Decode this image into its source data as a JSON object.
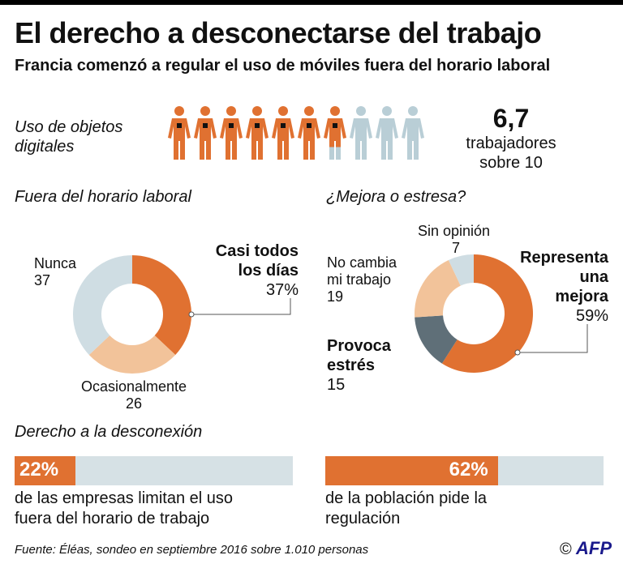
{
  "header": {
    "title": "El derecho a desconectarse del trabajo",
    "subtitle": "Francia comenzó a regular el uso de móviles fuera del horario laboral"
  },
  "usage": {
    "label_line1": "Uso de objetos",
    "label_line2": "digitales",
    "value": "6,7",
    "caption_line1": "trabajadores",
    "caption_line2": "sobre 10",
    "ratio": 0.67,
    "icon_count": 10
  },
  "colors": {
    "orange": "#e07131",
    "peach": "#f2c39a",
    "lightblue": "#cfdde3",
    "slate": "#5f6f78",
    "paleblue": "#d6e1e5",
    "figure_blue": "#b9ced6"
  },
  "fuera": {
    "section_title": "Fuera del horario laboral"
  },
  "mejora": {
    "section_title": "¿Mejora o estresa?"
  },
  "chart_data": [
    {
      "type": "pie",
      "title": "Fuera del horario laboral",
      "slices": [
        {
          "label_line1": "Casi todos",
          "label_line2": "los días",
          "value_text": "37%",
          "value": 37
        },
        {
          "label_line1": "Ocasionalmente",
          "value_text": "26",
          "value": 26
        },
        {
          "label_line1": "Nunca",
          "value_text": "37",
          "value": 37
        }
      ]
    },
    {
      "type": "pie",
      "title": "¿Mejora o estresa?",
      "slices": [
        {
          "label_line1": "Representa",
          "label_line2": "una",
          "label_line3": "mejora",
          "value_text": "59%",
          "value": 59
        },
        {
          "label_line1": "Provoca",
          "label_line2": "estrés",
          "value_text": "15",
          "value": 15
        },
        {
          "label_line1": "No cambia",
          "label_line2": "mi trabajo",
          "value_text": "19",
          "value": 19
        },
        {
          "label_line1": "Sin opinión",
          "value_text": "7",
          "value": 7
        }
      ]
    },
    {
      "type": "bar",
      "title": "Derecho a la desconexión",
      "bars": [
        {
          "value": 22,
          "value_text": "22%",
          "text_line1": "de las empresas limitan el uso",
          "text_line2": "fuera del horario de trabajo"
        },
        {
          "value": 62,
          "value_text": "62%",
          "text_line1": "de la población pide la",
          "text_line2": "regulación"
        }
      ]
    }
  ],
  "derecho": {
    "section_title": "Derecho a la desconexión"
  },
  "footer": {
    "source": "Fuente: Éléas, sondeo en septiembre 2016 sobre 1.010 personas",
    "copyright": "©",
    "brand": "AFP"
  }
}
